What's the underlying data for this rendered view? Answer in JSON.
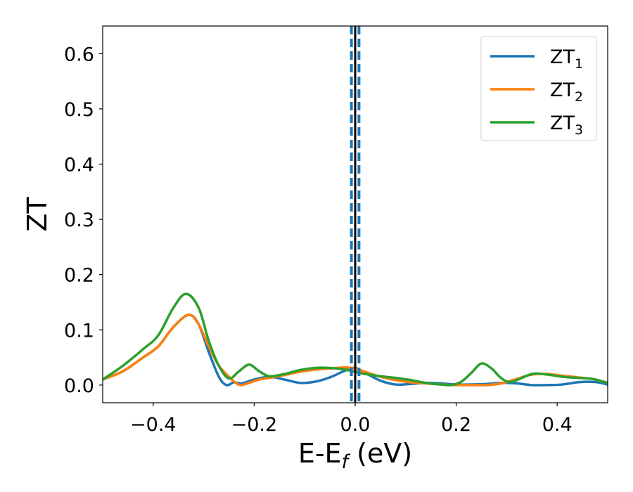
{
  "chart_data": {
    "type": "line",
    "xlabel": "E-E",
    "xlabel_sub": "f",
    "xlabel_unit": " (eV)",
    "ylabel": "ZT",
    "xlim": [
      -0.5,
      0.5
    ],
    "ylim": [
      -0.032,
      0.65
    ],
    "xticks": [
      -0.4,
      -0.2,
      0.0,
      0.2,
      0.4
    ],
    "xtick_labels": [
      "−0.4",
      "−0.2",
      "0.0",
      "0.2",
      "0.4"
    ],
    "yticks": [
      0.0,
      0.1,
      0.2,
      0.3,
      0.4,
      0.5,
      0.6
    ],
    "ytick_labels": [
      "0.0",
      "0.1",
      "0.2",
      "0.3",
      "0.4",
      "0.5",
      "0.6"
    ],
    "grid": false,
    "legend_position": "top-right",
    "vertical_lines": [
      {
        "x": 0.0,
        "style": "solid",
        "color": "#000000"
      },
      {
        "x": -0.0075,
        "style": "dashed",
        "color": "#1f77b4"
      },
      {
        "x": 0.0075,
        "style": "dashed",
        "color": "#1f77b4"
      }
    ],
    "series": [
      {
        "name": "ZT",
        "name_sub": "1",
        "color": "#1f77b4",
        "x": [
          -0.5,
          -0.46,
          -0.42,
          -0.39,
          -0.36,
          -0.33,
          -0.31,
          -0.29,
          -0.27,
          -0.255,
          -0.24,
          -0.225,
          -0.2,
          -0.17,
          -0.14,
          -0.11,
          -0.08,
          -0.05,
          -0.02,
          0.0,
          0.02,
          0.05,
          0.08,
          0.11,
          0.14,
          0.17,
          0.2,
          0.23,
          0.26,
          0.29,
          0.32,
          0.35,
          0.38,
          0.41,
          0.44,
          0.46,
          0.48,
          0.5
        ],
        "y": [
          0.01,
          0.025,
          0.05,
          0.07,
          0.105,
          0.127,
          0.11,
          0.06,
          0.015,
          0.0,
          0.005,
          0.003,
          0.01,
          0.015,
          0.01,
          0.004,
          0.006,
          0.014,
          0.026,
          0.031,
          0.022,
          0.008,
          0.001,
          0.002,
          0.004,
          0.003,
          0.001,
          0.001,
          0.002,
          0.004,
          0.003,
          0.0,
          0.0,
          0.001,
          0.005,
          0.006,
          0.005,
          0.001
        ]
      },
      {
        "name": "ZT",
        "name_sub": "2",
        "color": "#ff7f0e",
        "x": [
          -0.5,
          -0.46,
          -0.42,
          -0.39,
          -0.36,
          -0.33,
          -0.31,
          -0.29,
          -0.27,
          -0.25,
          -0.235,
          -0.225,
          -0.21,
          -0.19,
          -0.17,
          -0.14,
          -0.11,
          -0.08,
          -0.05,
          -0.02,
          0.0,
          0.02,
          0.05,
          0.08,
          0.11,
          0.14,
          0.17,
          0.2,
          0.23,
          0.26,
          0.29,
          0.32,
          0.35,
          0.38,
          0.41,
          0.44,
          0.47,
          0.5
        ],
        "y": [
          0.01,
          0.025,
          0.05,
          0.07,
          0.105,
          0.127,
          0.11,
          0.07,
          0.035,
          0.015,
          0.003,
          0.0,
          0.004,
          0.01,
          0.013,
          0.018,
          0.024,
          0.028,
          0.03,
          0.032,
          0.03,
          0.024,
          0.015,
          0.009,
          0.005,
          0.003,
          0.001,
          0.0,
          0.0,
          0.0,
          0.003,
          0.011,
          0.019,
          0.02,
          0.017,
          0.014,
          0.011,
          0.004
        ]
      },
      {
        "name": "ZT",
        "name_sub": "3",
        "color": "#2ca02c",
        "x": [
          -0.5,
          -0.46,
          -0.42,
          -0.39,
          -0.36,
          -0.335,
          -0.31,
          -0.29,
          -0.27,
          -0.25,
          -0.23,
          -0.21,
          -0.19,
          -0.17,
          -0.14,
          -0.11,
          -0.08,
          -0.05,
          -0.02,
          0.0,
          0.02,
          0.05,
          0.08,
          0.11,
          0.14,
          0.17,
          0.19,
          0.21,
          0.23,
          0.25,
          0.27,
          0.29,
          0.31,
          0.35,
          0.38,
          0.41,
          0.44,
          0.47,
          0.5
        ],
        "y": [
          0.01,
          0.035,
          0.065,
          0.09,
          0.14,
          0.165,
          0.14,
          0.08,
          0.035,
          0.012,
          0.025,
          0.037,
          0.025,
          0.016,
          0.02,
          0.027,
          0.031,
          0.031,
          0.028,
          0.024,
          0.02,
          0.016,
          0.013,
          0.009,
          0.004,
          0.001,
          0.0,
          0.006,
          0.022,
          0.039,
          0.03,
          0.012,
          0.006,
          0.02,
          0.019,
          0.015,
          0.013,
          0.011,
          0.004
        ]
      }
    ]
  }
}
